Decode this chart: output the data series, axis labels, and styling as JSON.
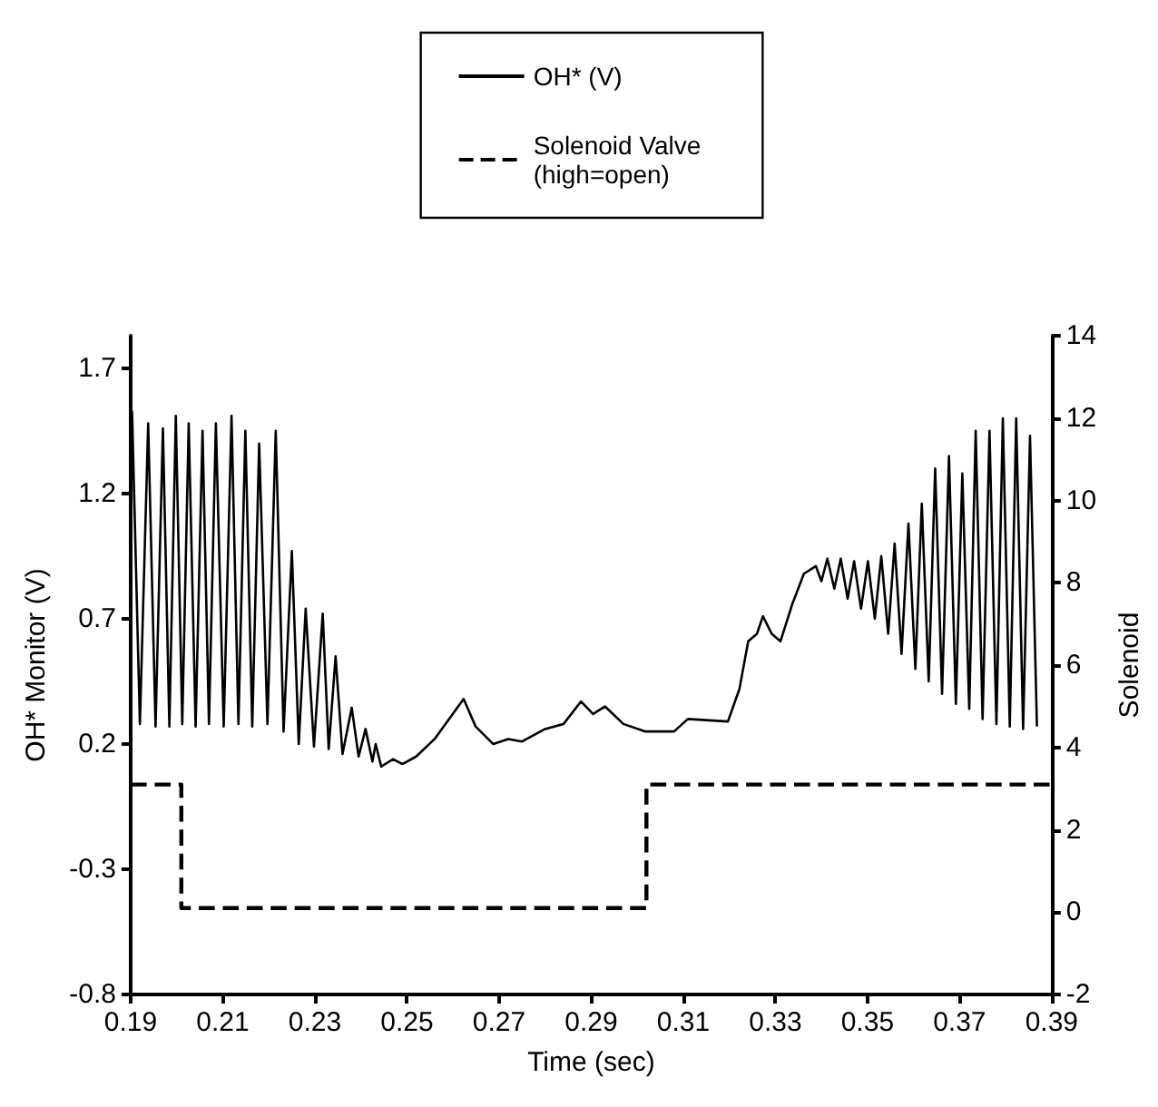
{
  "chart_data": {
    "type": "line",
    "xlabel": "Time (sec)",
    "ylabel": "OH* Monitor (V)",
    "y2label": "Solenoid",
    "xlim": [
      0.19,
      0.39
    ],
    "xticks": [
      0.19,
      0.21,
      0.23,
      0.25,
      0.27,
      0.29,
      0.31,
      0.33,
      0.35,
      0.37,
      0.39
    ],
    "ylim": [
      -0.8,
      1.83
    ],
    "yticks": [
      -0.8,
      -0.3,
      0.2,
      0.7,
      1.2,
      1.7
    ],
    "y2lim": [
      -2,
      14
    ],
    "y2ticks": [
      -2,
      0,
      2,
      4,
      6,
      8,
      10,
      12,
      14
    ],
    "grid": false,
    "legend": "top",
    "marker": "none",
    "series": [
      {
        "name": "OH* (V)",
        "color": "#000000",
        "line_style": "solid",
        "x": [
          0.1903,
          0.192,
          0.1938,
          0.1954,
          0.197,
          0.1984,
          0.1998,
          0.2012,
          0.2026,
          0.2041,
          0.2056,
          0.207,
          0.2085,
          0.2102,
          0.2119,
          0.2134,
          0.2149,
          0.2164,
          0.2179,
          0.2197,
          0.2215,
          0.2232,
          0.225,
          0.2265,
          0.228,
          0.2298,
          0.2317,
          0.233,
          0.2345,
          0.236,
          0.238,
          0.2395,
          0.241,
          0.2425,
          0.2432,
          0.2444,
          0.247,
          0.249,
          0.252,
          0.256,
          0.2623,
          0.2649,
          0.2687,
          0.272,
          0.275,
          0.28,
          0.284,
          0.2878,
          0.2904,
          0.293,
          0.297,
          0.3018,
          0.308,
          0.311,
          0.3197,
          0.3222,
          0.3241,
          0.326,
          0.3273,
          0.3292,
          0.3311,
          0.3337,
          0.3362,
          0.3388,
          0.34,
          0.3413,
          0.3428,
          0.3442,
          0.3457,
          0.3471,
          0.3486,
          0.3501,
          0.3516,
          0.353,
          0.3545,
          0.3559,
          0.3574,
          0.3589,
          0.3604,
          0.3618,
          0.3633,
          0.3647,
          0.3662,
          0.3677,
          0.3692,
          0.3706,
          0.3721,
          0.3735,
          0.375,
          0.3765,
          0.378,
          0.3794,
          0.3809,
          0.3823,
          0.3838,
          0.3853,
          0.3868
        ],
        "values": [
          1.53,
          0.28,
          1.48,
          0.27,
          1.46,
          0.27,
          1.51,
          0.28,
          1.48,
          0.27,
          1.45,
          0.28,
          1.48,
          0.27,
          1.51,
          0.28,
          1.45,
          0.27,
          1.4,
          0.28,
          1.45,
          0.25,
          0.97,
          0.2,
          0.74,
          0.19,
          0.72,
          0.18,
          0.55,
          0.16,
          0.345,
          0.15,
          0.26,
          0.13,
          0.2,
          0.11,
          0.14,
          0.12,
          0.15,
          0.22,
          0.38,
          0.27,
          0.2,
          0.22,
          0.21,
          0.26,
          0.28,
          0.37,
          0.32,
          0.35,
          0.28,
          0.25,
          0.25,
          0.3,
          0.29,
          0.42,
          0.61,
          0.64,
          0.71,
          0.64,
          0.61,
          0.76,
          0.88,
          0.91,
          0.85,
          0.94,
          0.82,
          0.94,
          0.78,
          0.93,
          0.74,
          0.93,
          0.7,
          0.95,
          0.64,
          1.0,
          0.56,
          1.08,
          0.5,
          1.16,
          0.45,
          1.3,
          0.4,
          1.35,
          0.36,
          1.28,
          0.34,
          1.45,
          0.3,
          1.45,
          0.28,
          1.5,
          0.27,
          1.5,
          0.26,
          1.43,
          0.27
        ]
      },
      {
        "name": "Solenoid Valve\n(high=open)",
        "color": "#000000",
        "line_style": "dashed",
        "axis": "y2",
        "x": [
          0.19,
          0.201,
          0.201,
          0.302,
          0.302,
          0.39
        ],
        "values": [
          3.1,
          3.1,
          0.1,
          0.1,
          3.1,
          3.1
        ]
      }
    ]
  }
}
